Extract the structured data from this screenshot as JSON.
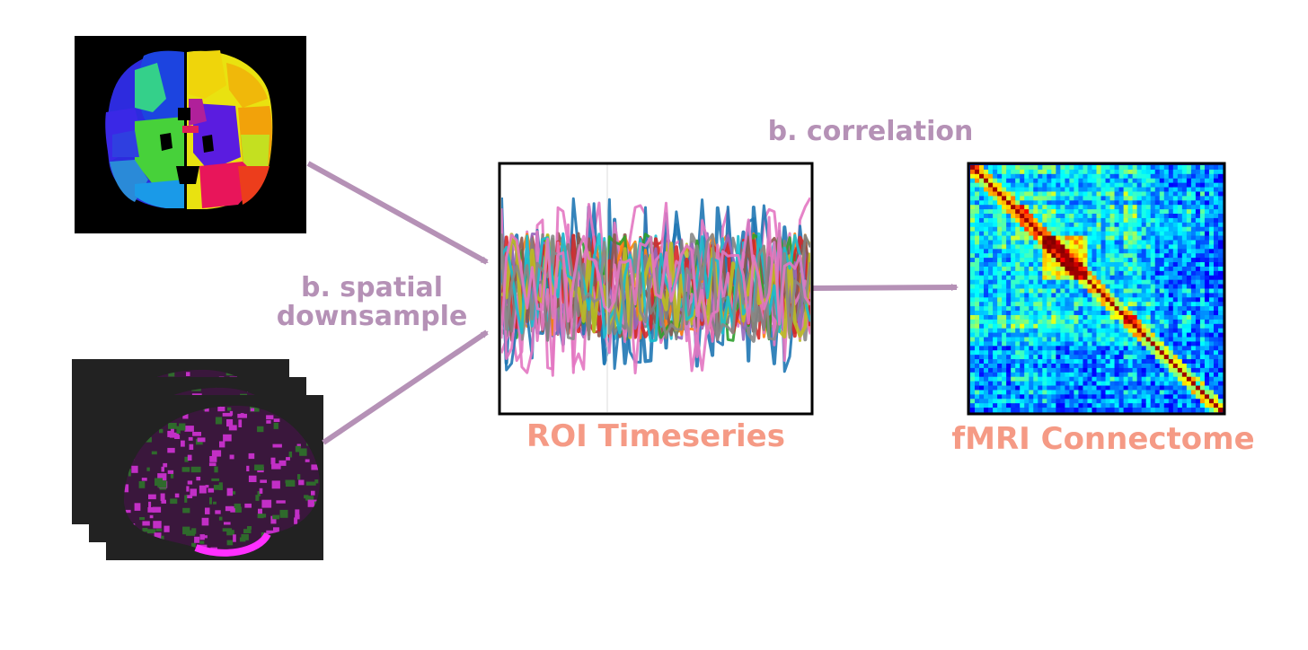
{
  "labels": {
    "spatial_line1": "b. spatial",
    "spatial_line2": "downsample",
    "correlation": "b. correlation",
    "roi_timeseries": "ROI Timeseries",
    "fmri_connectome": "fMRI Connectome"
  },
  "colors": {
    "step_label": "#b591b6",
    "output_label": "#f59a85",
    "arrow": "#b591b6",
    "frame": "#000000"
  },
  "panels": {
    "atlas": {
      "icon": "brain-atlas-parcellation-icon"
    },
    "volumes": {
      "icon": "fmri-volume-stack-icon"
    },
    "timeseries": {
      "icon": "roi-timeseries-plot-icon"
    },
    "connectome": {
      "icon": "correlation-matrix-icon"
    }
  }
}
